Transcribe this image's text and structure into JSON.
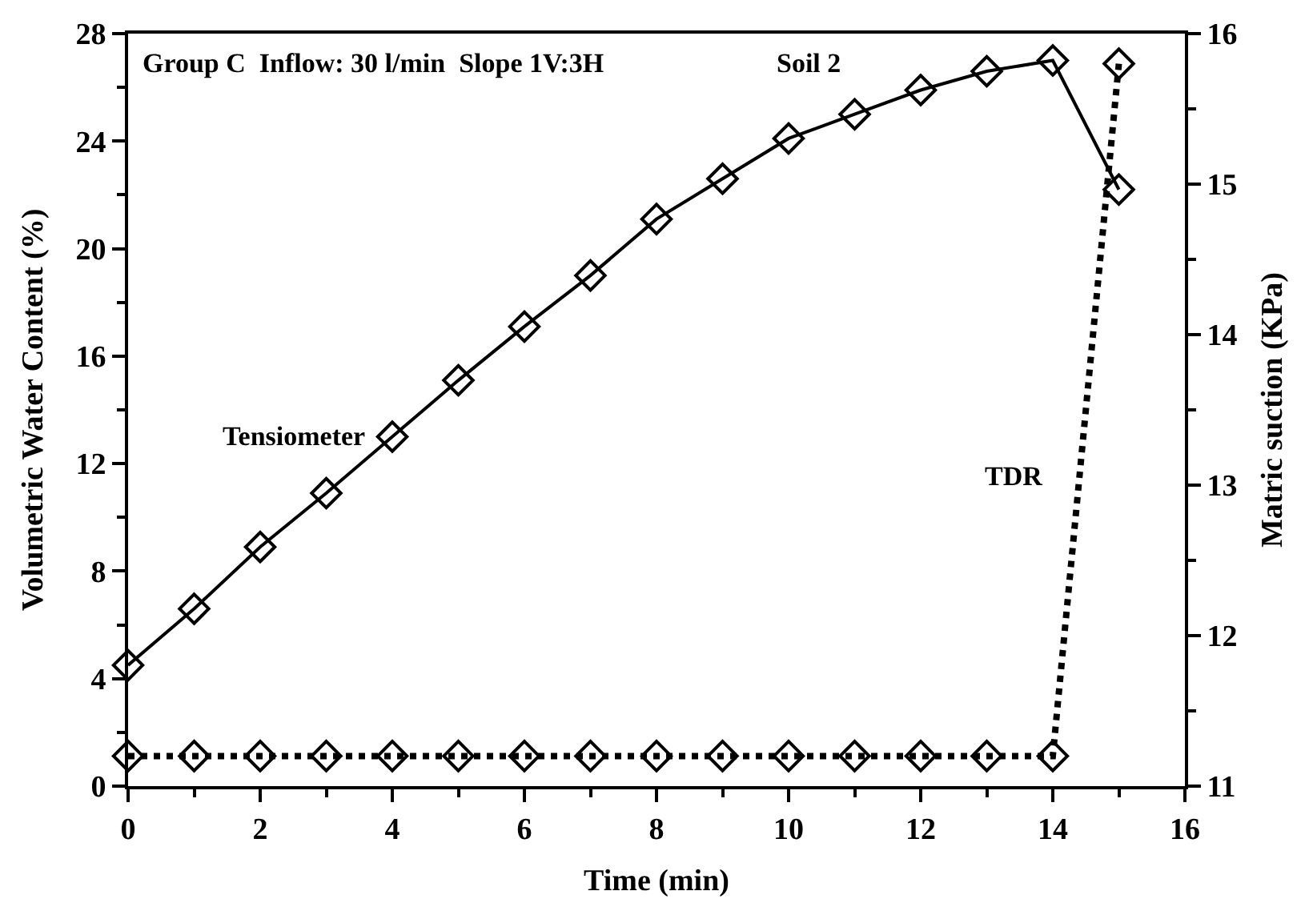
{
  "chart_data": {
    "type": "line",
    "xlabel": "Time (min)",
    "ylabel": "Volumetric Water Content (%)",
    "y2label": "Matric suction (KPa)",
    "x": [
      0,
      1,
      2,
      3,
      4,
      5,
      6,
      7,
      8,
      9,
      10,
      11,
      12,
      13,
      14,
      15
    ],
    "series": [
      {
        "name": "Tensiometer",
        "color": "#000000",
        "line_style": "solid",
        "values": [
          4.5,
          6.6,
          8.9,
          10.9,
          13.0,
          15.1,
          17.1,
          19.0,
          21.1,
          22.6,
          24.1,
          25.0,
          25.9,
          26.6,
          27.0,
          22.2
        ]
      },
      {
        "name": "TDR",
        "color": "#000000",
        "line_style": "dotted",
        "axis": "y2",
        "values": [
          11.2,
          11.2,
          11.2,
          11.2,
          11.2,
          11.2,
          11.2,
          11.2,
          11.2,
          11.2,
          11.2,
          11.2,
          11.2,
          11.2,
          11.2,
          15.8
        ]
      }
    ],
    "annotations": [
      "Group C  Inflow: 30 l/min  Slope 1V:3H",
      "Soil 2"
    ],
    "xlim": [
      0,
      16
    ],
    "xticks": [
      0,
      {
        "value": 1,
        "label": null
      },
      2,
      {
        "value": 3,
        "label": null
      },
      4,
      {
        "value": 5,
        "label": null
      },
      6,
      {
        "value": 7,
        "label": null
      },
      8,
      {
        "value": 9,
        "label": null
      },
      10,
      {
        "value": 11,
        "label": null
      },
      12,
      {
        "value": 13,
        "label": null
      },
      14,
      {
        "value": 15,
        "label": null
      },
      16
    ],
    "ylim": [
      0,
      28
    ],
    "yticks": [
      0,
      {
        "value": 2,
        "label": null
      },
      4,
      {
        "value": 6,
        "label": null
      },
      8,
      {
        "value": 10,
        "label": null
      },
      12,
      {
        "value": 14,
        "label": null
      },
      16,
      {
        "value": 18,
        "label": null
      },
      20,
      {
        "value": 22,
        "label": null
      },
      24,
      {
        "value": 26,
        "label": null
      },
      28
    ],
    "y2lim": [
      11,
      16
    ],
    "y2ticks": [
      11,
      {
        "value": 11.5,
        "label": null
      },
      12,
      {
        "value": 12.5,
        "label": null
      },
      13,
      {
        "value": 13.5,
        "label": null
      },
      14,
      {
        "value": 14.5,
        "label": null
      },
      15,
      {
        "value": 15.5,
        "label": null
      },
      16
    ],
    "marker": "diamond",
    "legend": false
  }
}
